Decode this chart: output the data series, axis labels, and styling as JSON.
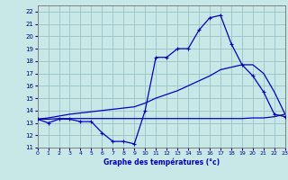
{
  "xlabel": "Graphe des températures (°c)",
  "bg_color": "#c8e8e8",
  "grid_color": "#a0c8c8",
  "line_color": "#0000cc",
  "hours": [
    0,
    1,
    2,
    3,
    4,
    5,
    6,
    7,
    8,
    9,
    10,
    11,
    12,
    13,
    14,
    15,
    16,
    17,
    18,
    19,
    20,
    21,
    22,
    23
  ],
  "temp_actual": [
    13.3,
    13.0,
    13.3,
    13.3,
    13.1,
    13.1,
    12.2,
    11.5,
    11.5,
    11.3,
    14.0,
    18.3,
    18.3,
    19.0,
    19.0,
    20.5,
    21.5,
    21.7,
    19.4,
    17.7,
    16.8,
    15.5,
    13.7,
    13.5
  ],
  "temp_flat": [
    13.3,
    13.3,
    13.35,
    13.35,
    13.35,
    13.35,
    13.35,
    13.35,
    13.35,
    13.35,
    13.35,
    13.35,
    13.35,
    13.35,
    13.35,
    13.35,
    13.35,
    13.35,
    13.35,
    13.35,
    13.4,
    13.4,
    13.5,
    13.7
  ],
  "temp_trend": [
    13.3,
    13.4,
    13.55,
    13.7,
    13.8,
    13.9,
    14.0,
    14.1,
    14.2,
    14.3,
    14.6,
    15.0,
    15.3,
    15.6,
    16.0,
    16.4,
    16.8,
    17.3,
    17.5,
    17.7,
    17.7,
    17.0,
    15.5,
    13.7
  ],
  "xlim": [
    0,
    23
  ],
  "ylim": [
    11.0,
    22.5
  ],
  "yticks": [
    11,
    12,
    13,
    14,
    15,
    16,
    17,
    18,
    19,
    20,
    21,
    22
  ],
  "xticks": [
    0,
    1,
    2,
    3,
    4,
    5,
    6,
    7,
    8,
    9,
    10,
    11,
    12,
    13,
    14,
    15,
    16,
    17,
    18,
    19,
    20,
    21,
    22,
    23
  ]
}
